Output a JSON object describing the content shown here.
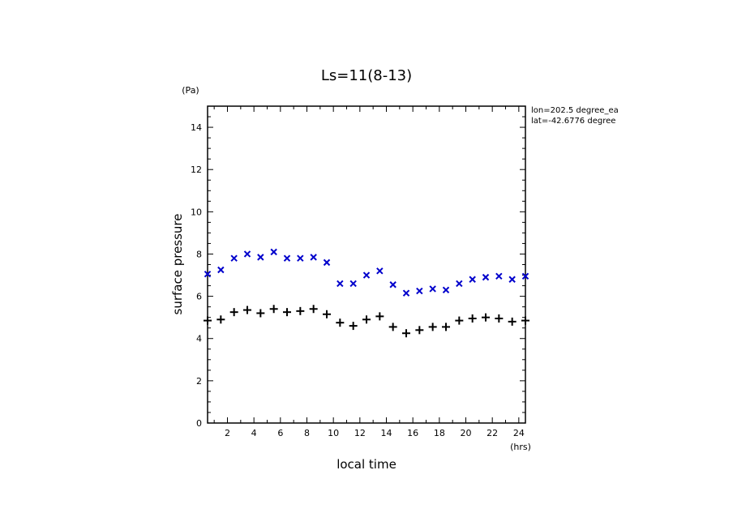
{
  "chart_data": {
    "type": "scatter",
    "title": "Ls=11(8-13)",
    "xlabel": "local time",
    "ylabel": "surface pressure",
    "x_unit": "(hrs)",
    "y_unit": "(Pa)",
    "xlim": [
      0.5,
      24.5
    ],
    "ylim": [
      0,
      15
    ],
    "x_ticks": [
      2,
      4,
      6,
      8,
      10,
      12,
      14,
      16,
      18,
      20,
      22,
      24
    ],
    "y_ticks": [
      0,
      2,
      4,
      6,
      8,
      10,
      12,
      14
    ],
    "annotations": [
      "lon=202.5 degree_ea",
      "lat=-42.6776 degree"
    ],
    "grid": false,
    "series": [
      {
        "marker": "x",
        "color": "#0000cc",
        "x": [
          0.5,
          1.5,
          2.5,
          3.5,
          4.5,
          5.5,
          6.5,
          7.5,
          8.5,
          9.5,
          10.5,
          11.5,
          12.5,
          13.5,
          14.5,
          15.5,
          16.5,
          17.5,
          18.5,
          19.5,
          20.5,
          21.5,
          22.5,
          23.5,
          24.5
        ],
        "values": [
          7.05,
          7.25,
          7.8,
          8.0,
          7.85,
          8.1,
          7.8,
          7.8,
          7.85,
          7.6,
          6.6,
          6.6,
          7.0,
          7.2,
          6.55,
          6.15,
          6.25,
          6.35,
          6.3,
          6.6,
          6.8,
          6.9,
          6.95,
          6.8,
          6.95
        ]
      },
      {
        "marker": "+",
        "color": "#000000",
        "x": [
          0.5,
          1.5,
          2.5,
          3.5,
          4.5,
          5.5,
          6.5,
          7.5,
          8.5,
          9.5,
          10.5,
          11.5,
          12.5,
          13.5,
          14.5,
          15.5,
          16.5,
          17.5,
          18.5,
          19.5,
          20.5,
          21.5,
          22.5,
          23.5,
          24.5
        ],
        "values": [
          4.85,
          4.9,
          5.25,
          5.35,
          5.2,
          5.4,
          5.25,
          5.3,
          5.4,
          5.15,
          4.75,
          4.6,
          4.9,
          5.05,
          4.55,
          4.25,
          4.4,
          4.55,
          4.55,
          4.85,
          4.95,
          5.0,
          4.95,
          4.8,
          4.85
        ]
      }
    ]
  }
}
